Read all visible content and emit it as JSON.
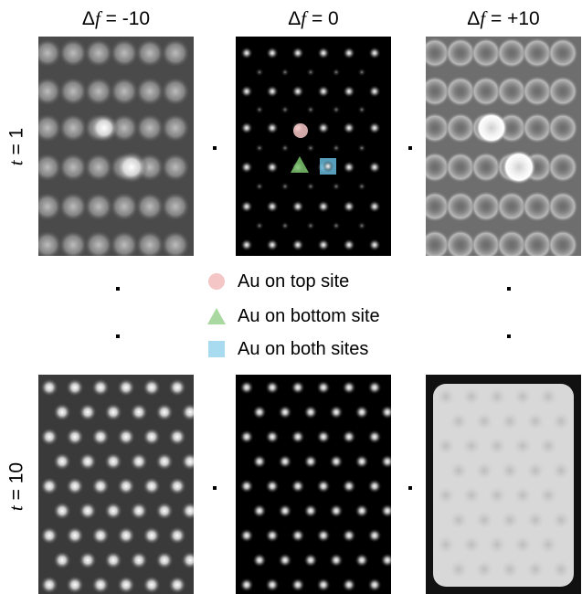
{
  "columns": [
    {
      "prefix": "Δ",
      "var": "f",
      "suffix": " = -10"
    },
    {
      "prefix": "Δ",
      "var": "f",
      "suffix": " = 0"
    },
    {
      "prefix": "Δ",
      "var": "f",
      "suffix": " = +10"
    }
  ],
  "rows": [
    {
      "var": "t",
      "suffix": " = 1"
    },
    {
      "var": "t",
      "suffix": " = 10"
    }
  ],
  "legend": [
    {
      "label": "Au on top site",
      "shape": "circle-icon",
      "color": "#f4c6c6"
    },
    {
      "label": "Au on bottom site",
      "shape": "triangle-icon",
      "color": "#a9d8a0"
    },
    {
      "label": "Au on both sites",
      "shape": "square-icon",
      "color": "#a9dbf0"
    }
  ]
}
